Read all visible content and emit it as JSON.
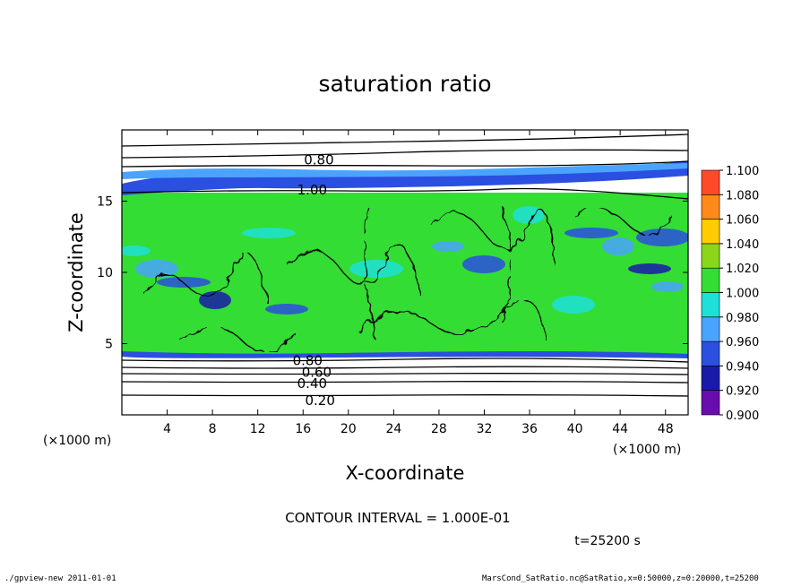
{
  "chart_data": {
    "type": "heatmap",
    "title": "saturation ratio",
    "xlabel": "X-coordinate",
    "ylabel": "Z-coordinate",
    "x_unit_left": "(×1000 m)",
    "x_unit_right": "(×1000 m)",
    "xlim": [
      0,
      50
    ],
    "ylim": [
      0,
      20
    ],
    "x_ticks": [
      "4",
      "8",
      "12",
      "16",
      "20",
      "24",
      "28",
      "32",
      "36",
      "40",
      "44",
      "48"
    ],
    "y_ticks": [
      "5",
      "10",
      "15"
    ],
    "colorbar": {
      "levels": [
        0.9,
        0.92,
        0.94,
        0.96,
        0.98,
        1.0,
        1.02,
        1.04,
        1.06,
        1.08,
        1.1
      ],
      "labels": [
        "0.900",
        "0.920",
        "0.940",
        "0.960",
        "0.980",
        "1.000",
        "1.020",
        "1.040",
        "1.060",
        "1.080",
        "1.100"
      ],
      "colors": [
        "#6a0dad",
        "#1a1aa8",
        "#2b4fe0",
        "#4aa3ff",
        "#1ee0d8",
        "#33dd33",
        "#8bd61a",
        "#ffcc00",
        "#ff8a1a",
        "#ff4a2a",
        "#ff8a8a"
      ]
    },
    "contour_labels": [
      {
        "value": "0.80",
        "x": 17.4,
        "z": 17.9
      },
      {
        "value": "1.00",
        "x": 16.8,
        "z": 15.8
      },
      {
        "value": "0.80",
        "x": 16.4,
        "z": 3.8
      },
      {
        "value": "0.60",
        "x": 17.2,
        "z": 3.0
      },
      {
        "value": "0.40",
        "x": 16.8,
        "z": 2.2
      },
      {
        "value": "0.20",
        "x": 17.5,
        "z": 1.0
      }
    ],
    "contour_interval_text": "CONTOUR INTERVAL = 1.000E-01",
    "time_text": "t=25200 s"
  },
  "footer": {
    "left": "./gpview-new   2011-01-01",
    "right": "MarsCond_SatRatio.nc@SatRatio,x=0:50000,z=0:20000,t=25200"
  }
}
